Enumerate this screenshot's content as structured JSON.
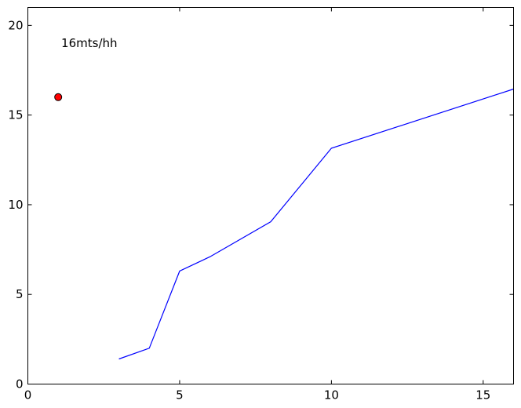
{
  "chart_data": {
    "type": "line",
    "title": "",
    "xlabel": "",
    "ylabel": "",
    "xlim": [
      0,
      16
    ],
    "ylim": [
      0,
      21
    ],
    "grid": false,
    "legend": "none",
    "xticks": [
      0,
      5,
      10,
      15
    ],
    "yticks": [
      0,
      5,
      10,
      15,
      20
    ],
    "series": [
      {
        "type": "line",
        "color": "#0000ff",
        "x": [
          3,
          4,
          5,
          6,
          8,
          10,
          16
        ],
        "y": [
          1.4,
          2.0,
          6.3,
          7.1,
          9.05,
          13.15,
          16.45
        ]
      }
    ],
    "points": [
      {
        "x": 1,
        "y": 16,
        "color": "#ff0000",
        "edge": "#000000"
      }
    ],
    "annotations": [
      {
        "text": "16mts/hh",
        "x": 1.1,
        "y": 19
      }
    ]
  }
}
